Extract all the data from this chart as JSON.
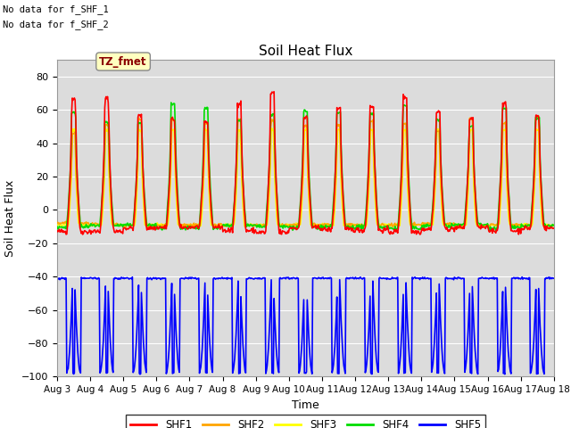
{
  "title": "Soil Heat Flux",
  "xlabel": "Time",
  "ylabel": "Soil Heat Flux",
  "note1": "No data for f_SHF_1",
  "note2": "No data for f_SHF_2",
  "tz_label": "TZ_fmet",
  "ylim": [
    -100,
    90
  ],
  "yticks": [
    -100,
    -80,
    -60,
    -40,
    -20,
    0,
    20,
    40,
    60,
    80
  ],
  "xtick_labels": [
    "Aug 3",
    "Aug 4",
    "Aug 5",
    "Aug 6",
    "Aug 7",
    "Aug 8",
    "Aug 9",
    "Aug 10",
    "Aug 11",
    "Aug 12",
    "Aug 13",
    "Aug 14",
    "Aug 15",
    "Aug 16",
    "Aug 17",
    "Aug 18"
  ],
  "colors": {
    "SHF1": "#FF0000",
    "SHF2": "#FFA500",
    "SHF3": "#FFFF00",
    "SHF4": "#00DD00",
    "SHF5": "#0000FF"
  },
  "bg_color": "#DCDCDC",
  "fig_bg": "#FFFFFF",
  "grid_color": "#FFFFFF",
  "legend_labels": [
    "SHF1",
    "SHF2",
    "SHF3",
    "SHF4",
    "SHF5"
  ]
}
